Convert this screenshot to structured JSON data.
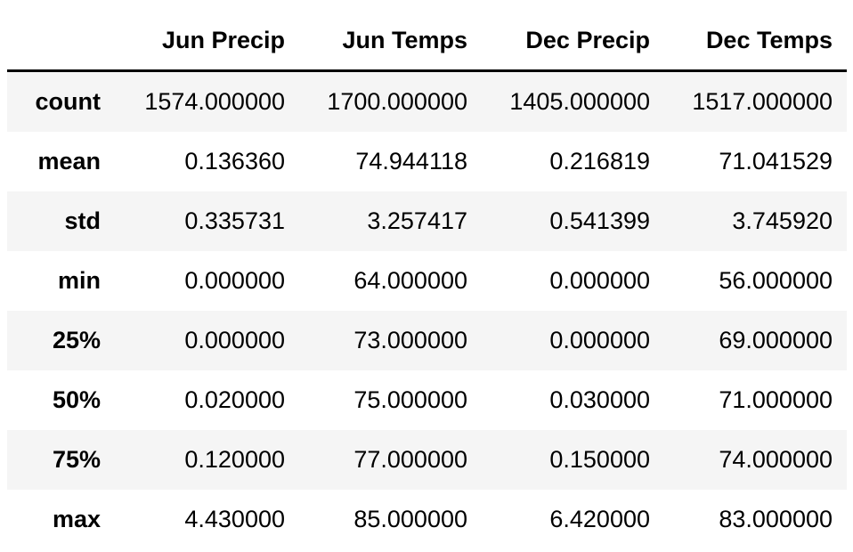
{
  "table": {
    "columns": [
      "Jun Precip",
      "Jun Temps",
      "Dec Precip",
      "Dec Temps"
    ],
    "rows": [
      {
        "label": "count",
        "values": [
          "1574.000000",
          "1700.000000",
          "1405.000000",
          "1517.000000"
        ]
      },
      {
        "label": "mean",
        "values": [
          "0.136360",
          "74.944118",
          "0.216819",
          "71.041529"
        ]
      },
      {
        "label": "std",
        "values": [
          "0.335731",
          "3.257417",
          "0.541399",
          "3.745920"
        ]
      },
      {
        "label": "min",
        "values": [
          "0.000000",
          "64.000000",
          "0.000000",
          "56.000000"
        ]
      },
      {
        "label": "25%",
        "values": [
          "0.000000",
          "73.000000",
          "0.000000",
          "69.000000"
        ]
      },
      {
        "label": "50%",
        "values": [
          "0.020000",
          "75.000000",
          "0.030000",
          "71.000000"
        ]
      },
      {
        "label": "75%",
        "values": [
          "0.120000",
          "77.000000",
          "0.150000",
          "74.000000"
        ]
      },
      {
        "label": "max",
        "values": [
          "4.430000",
          "85.000000",
          "6.420000",
          "83.000000"
        ]
      }
    ]
  }
}
